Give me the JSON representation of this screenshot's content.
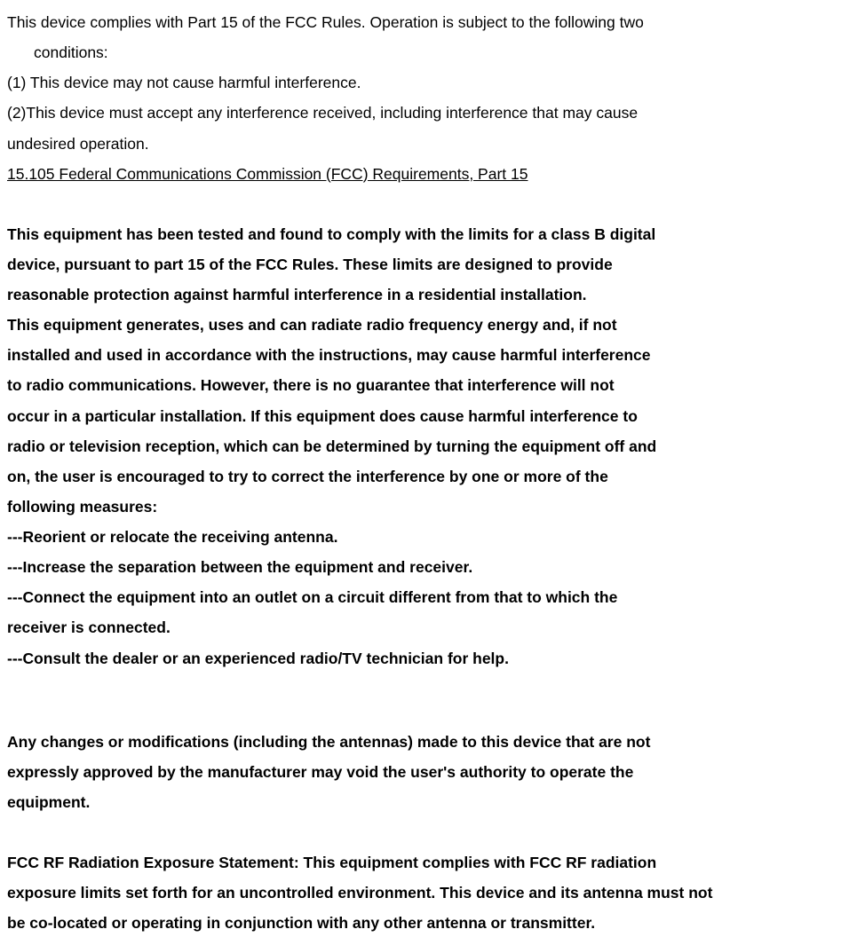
{
  "intro": {
    "line1": "This device complies with Part 15 of the FCC Rules. Operation is subject to the following two",
    "line2": "conditions:",
    "condition1": "(1) This device may not cause harmful interference.",
    "condition2a": "(2)This device must accept any interference received, including interference that may cause",
    "condition2b": "undesired operation."
  },
  "heading": "15.105 Federal Communications Commission (FCC) Requirements, Part 15",
  "para1": {
    "l1": "This equipment has been tested and found to comply with the limits for a class B digital",
    "l2": "device, pursuant to part 15 of the FCC Rules. These limits are designed to provide",
    "l3": "reasonable protection against harmful interference in a residential installation."
  },
  "para2": {
    "l1": "This equipment generates, uses and can radiate radio frequency energy and, if not",
    "l2": "installed and used in accordance with the instructions, may cause harmful interference",
    "l3": "to radio communications. However, there is no guarantee that interference will not",
    "l4": "occur in a particular installation. If this equipment does cause harmful interference to",
    "l5": "radio or television reception, which can be determined by turning the equipment off and",
    "l6": "on, the user is encouraged to try to correct the interference by one or more of the",
    "l7": "following measures:"
  },
  "measures": {
    "m1": "---Reorient or relocate the receiving antenna.",
    "m2": "---Increase the separation between the equipment and receiver.",
    "m3a": "---Connect the equipment into an outlet on a circuit different from that to which the",
    "m3b": "receiver is connected.",
    "m4": "---Consult the dealer or an experienced radio/TV technician for help."
  },
  "changes": {
    "l1": "Any changes or modifications (including the antennas) made to this device that are not",
    "l2": "expressly approved by the manufacturer may void the user's authority to operate the",
    "l3": "equipment."
  },
  "rf": {
    "l1": "FCC RF Radiation Exposure Statement: This equipment complies with FCC RF radiation",
    "l2": "exposure limits set forth for an uncontrolled environment. This device and its antenna must not",
    "l3": "be co-located or operating in conjunction with any other antenna or transmitter."
  }
}
